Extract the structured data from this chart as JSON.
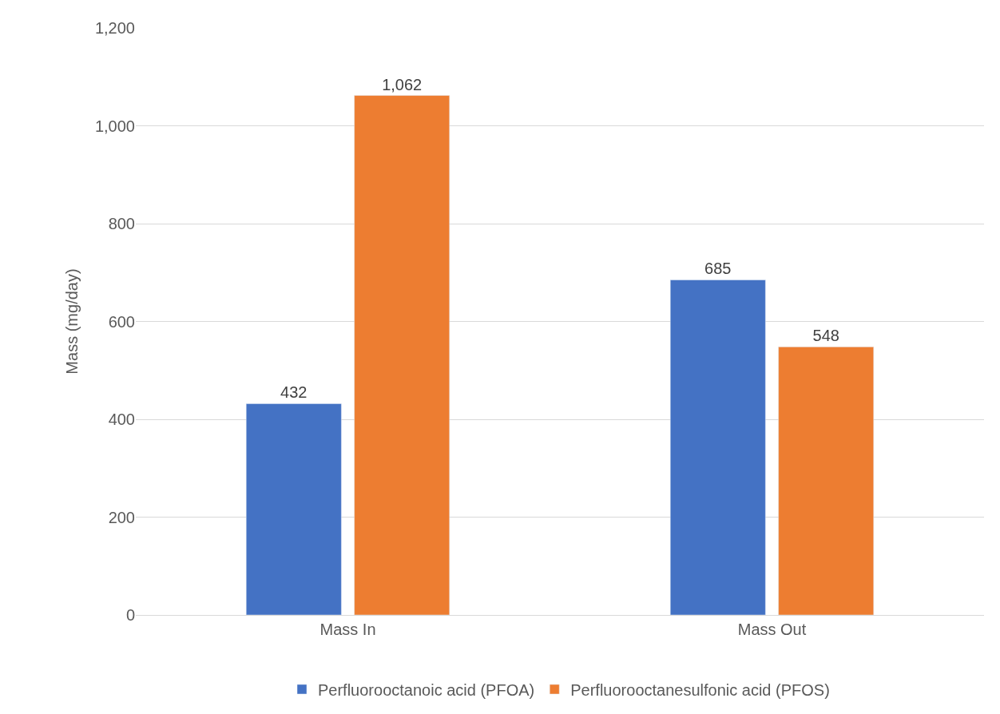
{
  "chart_data": {
    "type": "bar",
    "ylabel": "Mass (mg/day)",
    "categories": [
      "Mass In",
      "Mass Out"
    ],
    "series": [
      {
        "name": "Perfluorooctanoic acid (PFOA)",
        "color": "#4472c4",
        "values": [
          432,
          685
        ],
        "value_labels": [
          "432",
          "685"
        ]
      },
      {
        "name": "Perfluorooctanesulfonic acid (PFOS)",
        "color": "#ed7d31",
        "values": [
          1062,
          548
        ],
        "value_labels": [
          "1,062",
          "548"
        ]
      }
    ],
    "ylim": [
      0,
      1200
    ],
    "yticks": [
      0,
      200,
      400,
      600,
      800,
      {
        "value": 1000,
        "label": "1,000"
      },
      {
        "value": 1200,
        "label": "1,200"
      }
    ],
    "grid": "y",
    "legend": "bottom"
  }
}
